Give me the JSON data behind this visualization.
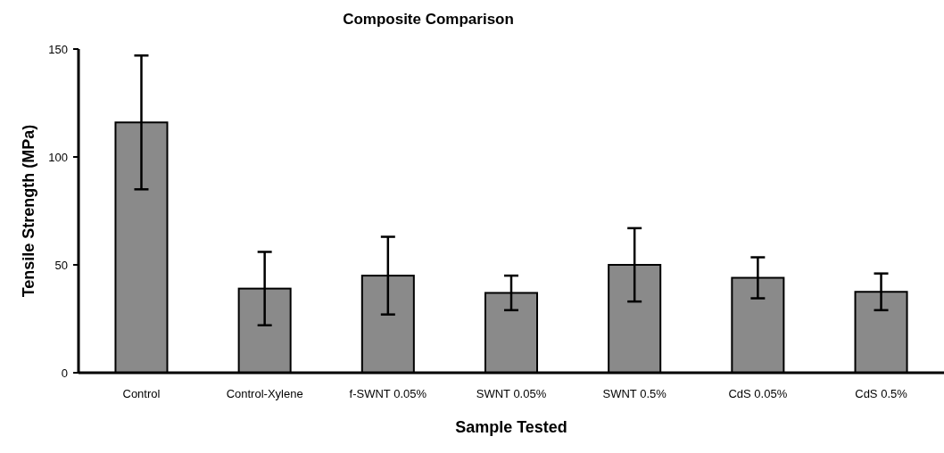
{
  "chart_data": {
    "type": "bar",
    "title": "Composite Comparison",
    "xlabel": "Sample Tested",
    "ylabel": "Tensile Strength (MPa)",
    "categories": [
      "Control",
      "Control-Xylene",
      "f-SWNT 0.05%",
      "SWNT 0.05%",
      "SWNT 0.5%",
      "CdS 0.05%",
      "CdS 0.5%"
    ],
    "values": [
      116,
      39,
      45,
      37,
      50,
      44,
      37.5
    ],
    "errors": [
      31,
      17,
      18,
      8,
      17,
      9.5,
      8.5
    ],
    "color": "#8a8a8a",
    "ylim": [
      0,
      150
    ],
    "yticks": [
      0,
      50,
      100,
      150
    ],
    "grid": false
  }
}
